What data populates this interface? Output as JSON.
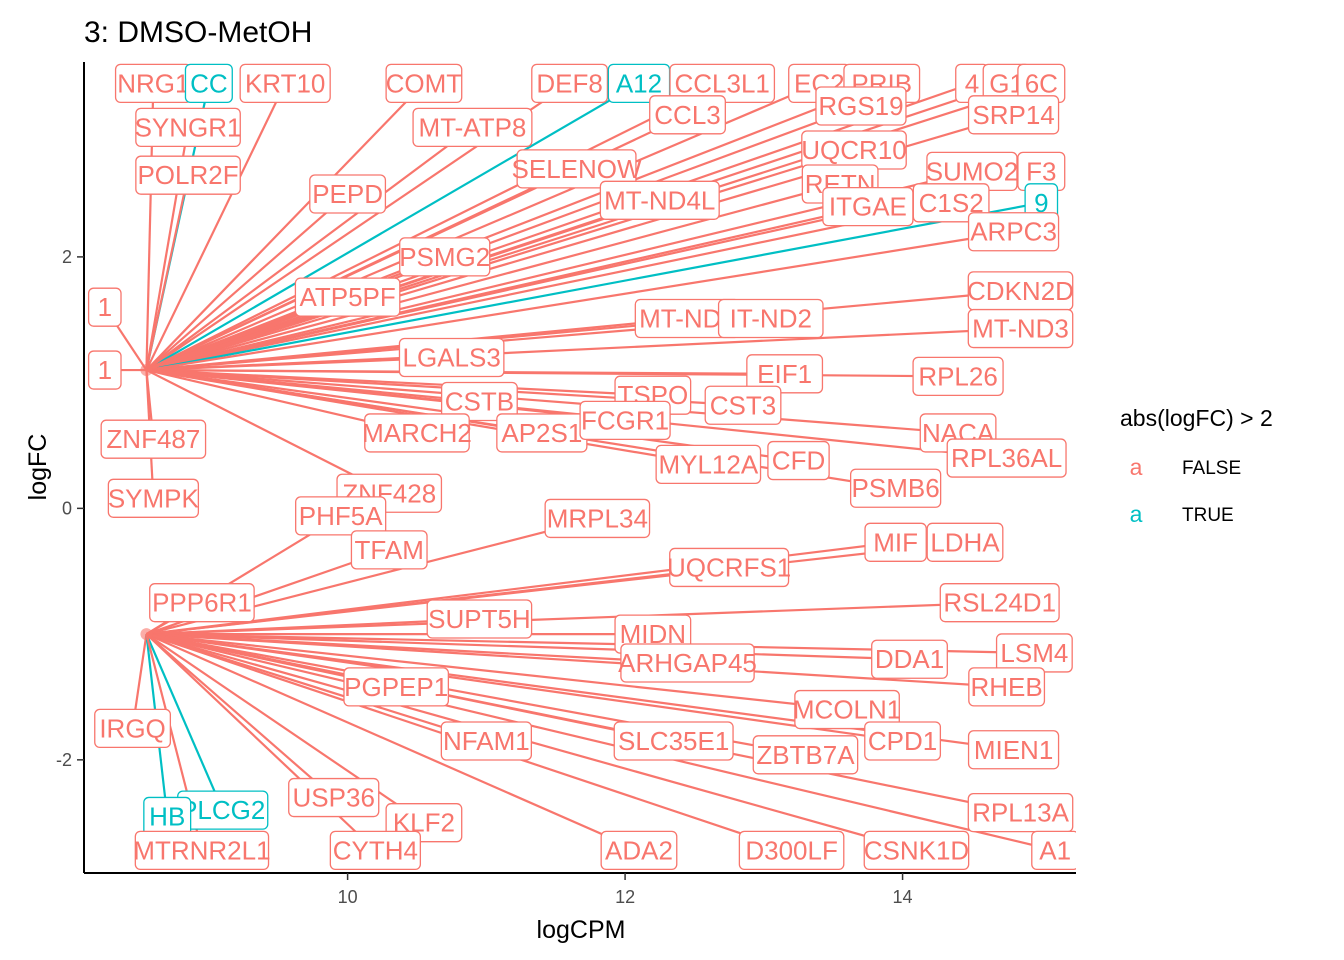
{
  "chart_data": {
    "type": "scatter",
    "title": "3: DMSO-MetOH",
    "xlabel": "logCPM",
    "ylabel": "logFC",
    "xlim": [
      8.1,
      15.25
    ],
    "ylim": [
      -2.9,
      3.55
    ],
    "x_ticks": [
      10,
      12,
      14
    ],
    "y_ticks": [
      -2,
      0,
      2
    ],
    "grid": false,
    "legend": {
      "title": "abs(logFC) > 2",
      "placement": "right",
      "key_glyph": "a",
      "entries": [
        {
          "label": "FALSE",
          "color": "#F8766D"
        },
        {
          "label": "TRUE",
          "color": "#00BFC4"
        }
      ]
    },
    "colors": {
      "false": "#F8766D",
      "true": "#00BFC4"
    },
    "point_clusters": [
      {
        "x": 8.55,
        "y": 1.1
      },
      {
        "x": 8.55,
        "y": -1.0
      }
    ],
    "labels": [
      {
        "text": "NRG1",
        "x": 8.6,
        "y": 3.38,
        "flag": false
      },
      {
        "text": "CC",
        "x": 9.0,
        "y": 3.38,
        "flag": true
      },
      {
        "text": "KRT10",
        "x": 9.55,
        "y": 3.38,
        "flag": false
      },
      {
        "text": "COMT",
        "x": 10.55,
        "y": 3.38,
        "flag": false
      },
      {
        "text": "DEF8",
        "x": 11.6,
        "y": 3.38,
        "flag": false
      },
      {
        "text": "A12",
        "x": 12.1,
        "y": 3.38,
        "flag": true
      },
      {
        "text": "CCL3L1",
        "x": 12.7,
        "y": 3.38,
        "flag": false
      },
      {
        "text": "EC2",
        "x": 13.4,
        "y": 3.38,
        "flag": false
      },
      {
        "text": "PRIB",
        "x": 13.85,
        "y": 3.38,
        "flag": false
      },
      {
        "text": "4",
        "x": 14.5,
        "y": 3.38,
        "flag": false
      },
      {
        "text": "G1",
        "x": 14.75,
        "y": 3.38,
        "flag": false
      },
      {
        "text": "6C",
        "x": 15.0,
        "y": 3.38,
        "flag": false
      },
      {
        "text": "SYNGR1",
        "x": 8.85,
        "y": 3.03,
        "flag": false
      },
      {
        "text": "MT-ATP8",
        "x": 10.9,
        "y": 3.03,
        "flag": false
      },
      {
        "text": "CCL3",
        "x": 12.45,
        "y": 3.13,
        "flag": false
      },
      {
        "text": "RGS19",
        "x": 13.7,
        "y": 3.2,
        "flag": false
      },
      {
        "text": "SRP14",
        "x": 14.8,
        "y": 3.13,
        "flag": false
      },
      {
        "text": "POLR2F",
        "x": 8.85,
        "y": 2.65,
        "flag": false
      },
      {
        "text": "SELENOW",
        "x": 11.65,
        "y": 2.7,
        "flag": false
      },
      {
        "text": "UQCR10",
        "x": 13.65,
        "y": 2.85,
        "flag": false
      },
      {
        "text": "SUMO2",
        "x": 14.5,
        "y": 2.68,
        "flag": false
      },
      {
        "text": "F3",
        "x": 15.0,
        "y": 2.68,
        "flag": false
      },
      {
        "text": "PEPD",
        "x": 10.0,
        "y": 2.5,
        "flag": false
      },
      {
        "text": "MT-ND4L",
        "x": 12.25,
        "y": 2.45,
        "flag": false
      },
      {
        "text": "RETN",
        "x": 13.55,
        "y": 2.58,
        "flag": false
      },
      {
        "text": "ITGAE",
        "x": 13.75,
        "y": 2.4,
        "flag": false
      },
      {
        "text": "C1S2",
        "x": 14.35,
        "y": 2.43,
        "flag": false
      },
      {
        "text": "9",
        "x": 15.0,
        "y": 2.43,
        "flag": true
      },
      {
        "text": "ARPC3",
        "x": 14.8,
        "y": 2.2,
        "flag": false
      },
      {
        "text": "PSMG2",
        "x": 10.7,
        "y": 2.0,
        "flag": false
      },
      {
        "text": "1",
        "x": 8.25,
        "y": 1.6,
        "flag": false
      },
      {
        "text": "ATP5PF",
        "x": 10.0,
        "y": 1.68,
        "flag": false
      },
      {
        "text": "CDKN2D",
        "x": 14.85,
        "y": 1.73,
        "flag": false
      },
      {
        "text": "MT-ND5",
        "x": 12.45,
        "y": 1.51,
        "flag": false
      },
      {
        "text": "IT-ND2",
        "x": 13.05,
        "y": 1.51,
        "flag": false
      },
      {
        "text": "MT-ND3",
        "x": 14.85,
        "y": 1.43,
        "flag": false
      },
      {
        "text": "1",
        "x": 8.25,
        "y": 1.1,
        "flag": false
      },
      {
        "text": "LGALS3",
        "x": 10.75,
        "y": 1.2,
        "flag": false
      },
      {
        "text": "EIF1",
        "x": 13.15,
        "y": 1.07,
        "flag": false
      },
      {
        "text": "RPL26",
        "x": 14.4,
        "y": 1.05,
        "flag": false
      },
      {
        "text": "CSTB",
        "x": 10.95,
        "y": 0.85,
        "flag": false
      },
      {
        "text": "TSPO",
        "x": 12.2,
        "y": 0.9,
        "flag": false
      },
      {
        "text": "CST3",
        "x": 12.85,
        "y": 0.82,
        "flag": false
      },
      {
        "text": "ZNF487",
        "x": 8.6,
        "y": 0.55,
        "flag": false
      },
      {
        "text": "MARCH2",
        "x": 10.5,
        "y": 0.6,
        "flag": false
      },
      {
        "text": "AP2S1",
        "x": 11.4,
        "y": 0.6,
        "flag": false
      },
      {
        "text": "FCGR1",
        "x": 12.0,
        "y": 0.7,
        "flag": false
      },
      {
        "text": "NACA",
        "x": 14.4,
        "y": 0.6,
        "flag": false
      },
      {
        "text": "MYL12A",
        "x": 12.6,
        "y": 0.35,
        "flag": false
      },
      {
        "text": "CFD",
        "x": 13.25,
        "y": 0.38,
        "flag": false
      },
      {
        "text": "RPL36AL",
        "x": 14.75,
        "y": 0.4,
        "flag": false
      },
      {
        "text": "SYMPK",
        "x": 8.6,
        "y": 0.08,
        "flag": false
      },
      {
        "text": "ZNF428",
        "x": 10.3,
        "y": 0.12,
        "flag": false
      },
      {
        "text": "PSMB6",
        "x": 13.95,
        "y": 0.16,
        "flag": false
      },
      {
        "text": "PHF5A",
        "x": 9.95,
        "y": -0.06,
        "flag": false
      },
      {
        "text": "MRPL34",
        "x": 11.8,
        "y": -0.08,
        "flag": false
      },
      {
        "text": "MIF",
        "x": 13.95,
        "y": -0.27,
        "flag": false
      },
      {
        "text": "LDHA",
        "x": 14.45,
        "y": -0.27,
        "flag": false
      },
      {
        "text": "TFAM",
        "x": 10.3,
        "y": -0.33,
        "flag": false
      },
      {
        "text": "UQCRFS1",
        "x": 12.75,
        "y": -0.47,
        "flag": false
      },
      {
        "text": "PPP6R1",
        "x": 8.95,
        "y": -0.75,
        "flag": false
      },
      {
        "text": "SUPT5H",
        "x": 10.95,
        "y": -0.88,
        "flag": false
      },
      {
        "text": "RSL24D1",
        "x": 14.7,
        "y": -0.75,
        "flag": false
      },
      {
        "text": "MIDN",
        "x": 12.2,
        "y": -1.0,
        "flag": false
      },
      {
        "text": "DDA1",
        "x": 14.05,
        "y": -1.2,
        "flag": false
      },
      {
        "text": "LSM4",
        "x": 14.95,
        "y": -1.15,
        "flag": false
      },
      {
        "text": "ARHGAP45",
        "x": 12.45,
        "y": -1.23,
        "flag": false
      },
      {
        "text": "PGPEP1",
        "x": 10.35,
        "y": -1.42,
        "flag": false
      },
      {
        "text": "RHEB",
        "x": 14.75,
        "y": -1.42,
        "flag": false
      },
      {
        "text": "MCOLN1",
        "x": 13.6,
        "y": -1.6,
        "flag": false
      },
      {
        "text": "IRGQ",
        "x": 8.45,
        "y": -1.75,
        "flag": false
      },
      {
        "text": "NFAM1",
        "x": 11.0,
        "y": -1.85,
        "flag": false
      },
      {
        "text": "SLC35E1",
        "x": 12.35,
        "y": -1.85,
        "flag": false
      },
      {
        "text": "CPD1",
        "x": 14.0,
        "y": -1.85,
        "flag": false
      },
      {
        "text": "MIEN1",
        "x": 14.8,
        "y": -1.92,
        "flag": false
      },
      {
        "text": "ZBTB7A",
        "x": 13.3,
        "y": -1.96,
        "flag": false
      },
      {
        "text": "USP36",
        "x": 9.9,
        "y": -2.3,
        "flag": false
      },
      {
        "text": "KLF2",
        "x": 10.55,
        "y": -2.5,
        "flag": false
      },
      {
        "text": "PLCG2",
        "x": 9.1,
        "y": -2.4,
        "flag": true
      },
      {
        "text": "HB",
        "x": 8.7,
        "y": -2.45,
        "flag": true
      },
      {
        "text": "RPL13A",
        "x": 14.85,
        "y": -2.42,
        "flag": false
      },
      {
        "text": "MTRNR2L1",
        "x": 8.95,
        "y": -2.72,
        "flag": false
      },
      {
        "text": "CYTH4",
        "x": 10.2,
        "y": -2.72,
        "flag": false
      },
      {
        "text": "ADA2",
        "x": 12.1,
        "y": -2.72,
        "flag": false
      },
      {
        "text": "D300LF",
        "x": 13.2,
        "y": -2.72,
        "flag": false
      },
      {
        "text": "CSNK1D",
        "x": 14.1,
        "y": -2.72,
        "flag": false
      },
      {
        "text": "A1",
        "x": 15.1,
        "y": -2.72,
        "flag": false
      }
    ]
  }
}
